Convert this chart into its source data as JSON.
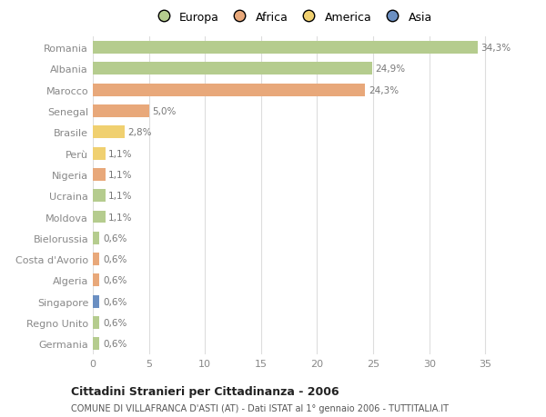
{
  "categories": [
    "Germania",
    "Regno Unito",
    "Singapore",
    "Algeria",
    "Costa d'Avorio",
    "Bielorussia",
    "Moldova",
    "Ucraina",
    "Nigeria",
    "Perù",
    "Brasile",
    "Senegal",
    "Marocco",
    "Albania",
    "Romania"
  ],
  "values": [
    0.6,
    0.6,
    0.6,
    0.6,
    0.6,
    0.6,
    1.1,
    1.1,
    1.1,
    1.1,
    2.8,
    5.0,
    24.3,
    24.9,
    34.3
  ],
  "colors": [
    "#b5cc8e",
    "#b5cc8e",
    "#6b8fc2",
    "#e8a87a",
    "#e8a87a",
    "#b5cc8e",
    "#b5cc8e",
    "#b5cc8e",
    "#e8a87a",
    "#f0d070",
    "#f0d070",
    "#e8a87a",
    "#e8a87a",
    "#b5cc8e",
    "#b5cc8e"
  ],
  "labels": [
    "0,6%",
    "0,6%",
    "0,6%",
    "0,6%",
    "0,6%",
    "0,6%",
    "1,1%",
    "1,1%",
    "1,1%",
    "1,1%",
    "2,8%",
    "5,0%",
    "24,3%",
    "24,9%",
    "34,3%"
  ],
  "legend_labels": [
    "Europa",
    "Africa",
    "America",
    "Asia"
  ],
  "legend_colors": [
    "#b5cc8e",
    "#e8a87a",
    "#f0d070",
    "#6b8fc2"
  ],
  "title": "Cittadini Stranieri per Cittadinanza - 2006",
  "subtitle": "COMUNE DI VILLAFRANCA D'ASTI (AT) - Dati ISTAT al 1° gennaio 2006 - TUTTITALIA.IT",
  "xlim": [
    0,
    37
  ],
  "background_color": "#ffffff",
  "grid_color": "#dddddd",
  "label_color": "#777777",
  "tick_color": "#888888"
}
